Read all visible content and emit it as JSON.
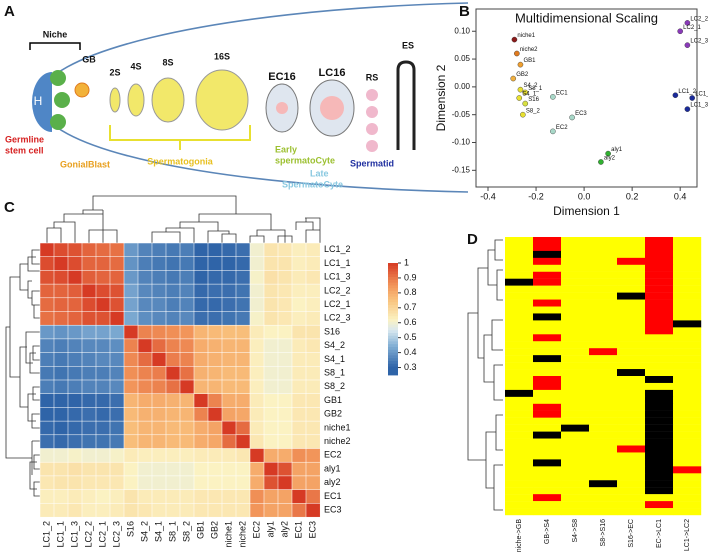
{
  "panel_labels": [
    "A",
    "B",
    "C",
    "D"
  ],
  "diagram": {
    "niche": "Niche",
    "hub": "H",
    "gb": "GB",
    "s2": "2S",
    "s4": "4S",
    "s8": "8S",
    "s16": "16S",
    "ec16": "EC16",
    "lc16": "LC16",
    "rs": "RS",
    "es": "ES",
    "germline_1": "Germline",
    "germline_2": "stem cell",
    "gonialblast": "GonialBlast",
    "spermatogonia": "Spermatogonia",
    "early_1": "Early",
    "early_2": "spermatoCyte",
    "late_1": "Late",
    "late_2": "SpermatoCyte",
    "spermatid": "Spermatid"
  },
  "chart_data": [
    {
      "type": "scatter",
      "title": "Multidimensional Scaling",
      "xlabel": "Dimension 1",
      "ylabel": "Dimension 2",
      "x": [
        -0.29,
        -0.28,
        -0.265,
        -0.295,
        -0.265,
        -0.245,
        -0.27,
        -0.245,
        -0.255,
        -0.13,
        -0.05,
        -0.13,
        0.1,
        0.07,
        0.43,
        0.4,
        0.43,
        0.38,
        0.45,
        0.43
      ],
      "y": [
        0.085,
        0.06,
        0.04,
        0.015,
        -0.005,
        -0.01,
        -0.02,
        -0.03,
        -0.05,
        -0.018,
        -0.055,
        -0.08,
        -0.12,
        -0.135,
        0.115,
        0.1,
        0.075,
        -0.015,
        -0.02,
        -0.04
      ],
      "point_labels": [
        "niche1",
        "niche2",
        "GB1",
        "GB2",
        "S4_2",
        "S8_1",
        "S4_1",
        "S16",
        "S8_2",
        "EC1",
        "EC3",
        "EC2",
        "aly1",
        "aly2",
        "LC2_2",
        "LC2_1",
        "LC2_3",
        "LC1_2",
        "LC1_1",
        "LC1_3"
      ],
      "colors": [
        "#8b1a1a",
        "#e07b1f",
        "#f0a030",
        "#f0b040",
        "#e8e030",
        "#e8e030",
        "#e8e030",
        "#d8e040",
        "#e8e030",
        "#a8d8c8",
        "#a8d8c8",
        "#a8d8c8",
        "#30b030",
        "#30b030",
        "#8a3ab9",
        "#8a3ab9",
        "#8a3ab9",
        "#1a2a9a",
        "#1a2a9a",
        "#1a2a9a"
      ],
      "xlim": [
        -0.45,
        0.47
      ],
      "ylim": [
        -0.18,
        0.14
      ],
      "xticks": [
        -0.4,
        -0.2,
        {
          "value": 0,
          "label": "0.0"
        },
        0.2,
        0.4
      ],
      "yticks": [
        -0.15,
        {
          "value": -0.1,
          "label": "-0.10"
        },
        -0.05,
        {
          "value": 0,
          "label": "0.00"
        },
        0.05,
        {
          "value": 0.1,
          "label": "0.10"
        }
      ]
    },
    {
      "type": "heatmap",
      "rows": [
        "LC1_2",
        "LC1_1",
        "LC1_3",
        "LC2_2",
        "LC2_1",
        "LC2_3",
        "S16",
        "S4_2",
        "S4_1",
        "S8_1",
        "S8_2",
        "GB1",
        "GB2",
        "niche1",
        "niche2",
        "EC2",
        "aly1",
        "aly2",
        "EC1",
        "EC3"
      ],
      "columns": [
        "LC1_2",
        "LC1_1",
        "LC1_3",
        "LC2_2",
        "LC2_1",
        "LC2_3",
        "S16",
        "S4_2",
        "S4_1",
        "S8_1",
        "S8_2",
        "GB1",
        "GB2",
        "niche1",
        "niche2",
        "EC2",
        "aly1",
        "aly2",
        "EC1",
        "EC3"
      ],
      "values": [
        [
          1,
          0.97,
          0.96,
          0.93,
          0.92,
          0.91,
          0.4,
          0.36,
          0.35,
          0.34,
          0.35,
          0.3,
          0.3,
          0.31,
          0.32,
          0.6,
          0.66,
          0.65,
          0.63,
          0.64
        ],
        [
          0.97,
          1,
          0.97,
          0.93,
          0.93,
          0.92,
          0.39,
          0.35,
          0.34,
          0.33,
          0.34,
          0.29,
          0.3,
          0.3,
          0.31,
          0.6,
          0.66,
          0.66,
          0.63,
          0.64
        ],
        [
          0.96,
          0.97,
          1,
          0.94,
          0.93,
          0.93,
          0.4,
          0.36,
          0.35,
          0.34,
          0.35,
          0.3,
          0.31,
          0.31,
          0.32,
          0.61,
          0.67,
          0.66,
          0.64,
          0.65
        ],
        [
          0.93,
          0.93,
          0.94,
          1,
          0.97,
          0.96,
          0.42,
          0.37,
          0.36,
          0.35,
          0.36,
          0.31,
          0.32,
          0.32,
          0.33,
          0.6,
          0.66,
          0.65,
          0.63,
          0.63
        ],
        [
          0.92,
          0.93,
          0.93,
          0.97,
          1,
          0.96,
          0.42,
          0.37,
          0.37,
          0.35,
          0.36,
          0.31,
          0.31,
          0.32,
          0.33,
          0.6,
          0.66,
          0.65,
          0.62,
          0.63
        ],
        [
          0.91,
          0.92,
          0.93,
          0.96,
          0.96,
          1,
          0.43,
          0.38,
          0.37,
          0.36,
          0.37,
          0.32,
          0.32,
          0.33,
          0.34,
          0.61,
          0.66,
          0.65,
          0.63,
          0.64
        ],
        [
          0.4,
          0.39,
          0.4,
          0.42,
          0.42,
          0.43,
          1,
          0.88,
          0.87,
          0.86,
          0.85,
          0.78,
          0.77,
          0.76,
          0.76,
          0.64,
          0.62,
          0.62,
          0.66,
          0.66
        ],
        [
          0.36,
          0.35,
          0.36,
          0.37,
          0.37,
          0.38,
          0.88,
          1,
          0.92,
          0.88,
          0.87,
          0.8,
          0.79,
          0.78,
          0.78,
          0.63,
          0.6,
          0.6,
          0.64,
          0.65
        ],
        [
          0.35,
          0.34,
          0.35,
          0.36,
          0.37,
          0.37,
          0.87,
          0.92,
          1,
          0.89,
          0.88,
          0.8,
          0.79,
          0.78,
          0.78,
          0.63,
          0.6,
          0.6,
          0.64,
          0.64
        ],
        [
          0.34,
          0.33,
          0.34,
          0.35,
          0.35,
          0.36,
          0.86,
          0.88,
          0.89,
          1,
          0.91,
          0.79,
          0.78,
          0.77,
          0.77,
          0.63,
          0.6,
          0.6,
          0.64,
          0.64
        ],
        [
          0.35,
          0.34,
          0.35,
          0.36,
          0.36,
          0.37,
          0.85,
          0.87,
          0.88,
          0.91,
          1,
          0.78,
          0.78,
          0.77,
          0.77,
          0.63,
          0.6,
          0.6,
          0.64,
          0.64
        ],
        [
          0.3,
          0.29,
          0.3,
          0.31,
          0.31,
          0.32,
          0.78,
          0.8,
          0.8,
          0.79,
          0.78,
          1,
          0.88,
          0.8,
          0.8,
          0.64,
          0.62,
          0.62,
          0.65,
          0.65
        ],
        [
          0.3,
          0.3,
          0.31,
          0.32,
          0.31,
          0.32,
          0.77,
          0.79,
          0.79,
          0.78,
          0.78,
          0.88,
          1,
          0.82,
          0.81,
          0.64,
          0.62,
          0.62,
          0.65,
          0.65
        ],
        [
          0.31,
          0.3,
          0.31,
          0.32,
          0.32,
          0.33,
          0.76,
          0.78,
          0.78,
          0.77,
          0.77,
          0.8,
          0.82,
          1,
          0.92,
          0.64,
          0.62,
          0.62,
          0.65,
          0.65
        ],
        [
          0.32,
          0.31,
          0.32,
          0.33,
          0.33,
          0.34,
          0.76,
          0.78,
          0.78,
          0.77,
          0.77,
          0.8,
          0.81,
          0.92,
          1,
          0.65,
          0.62,
          0.62,
          0.65,
          0.65
        ],
        [
          0.6,
          0.6,
          0.61,
          0.6,
          0.6,
          0.61,
          0.64,
          0.63,
          0.63,
          0.63,
          0.63,
          0.64,
          0.64,
          0.64,
          0.65,
          1,
          0.8,
          0.8,
          0.86,
          0.85
        ],
        [
          0.66,
          0.66,
          0.67,
          0.66,
          0.66,
          0.66,
          0.62,
          0.6,
          0.6,
          0.6,
          0.6,
          0.62,
          0.62,
          0.62,
          0.62,
          0.8,
          1,
          0.96,
          0.82,
          0.82
        ],
        [
          0.65,
          0.66,
          0.66,
          0.65,
          0.65,
          0.65,
          0.62,
          0.6,
          0.6,
          0.6,
          0.6,
          0.62,
          0.62,
          0.62,
          0.62,
          0.8,
          0.96,
          1,
          0.82,
          0.82
        ],
        [
          0.63,
          0.63,
          0.64,
          0.63,
          0.62,
          0.63,
          0.66,
          0.64,
          0.64,
          0.64,
          0.64,
          0.65,
          0.65,
          0.65,
          0.65,
          0.86,
          0.82,
          0.82,
          1,
          0.9
        ],
        [
          0.64,
          0.64,
          0.65,
          0.63,
          0.63,
          0.64,
          0.66,
          0.65,
          0.64,
          0.64,
          0.64,
          0.65,
          0.65,
          0.65,
          0.65,
          0.85,
          0.82,
          0.82,
          0.9,
          1
        ]
      ],
      "color_stops": [
        [
          0.3,
          "#2f64a8"
        ],
        [
          0.45,
          "#86b2d6"
        ],
        [
          0.55,
          "#d9e8ef"
        ],
        [
          0.62,
          "#fbf2c2"
        ],
        [
          0.75,
          "#f9c37e"
        ],
        [
          0.85,
          "#f2955a"
        ],
        [
          1,
          "#d63a24"
        ]
      ],
      "colorbar_lim": [
        0.25,
        1
      ],
      "colorbar_ticks": [
        1,
        0.9,
        0.8,
        0.7,
        0.6,
        0.5,
        0.4,
        0.3
      ]
    },
    {
      "type": "heatmap",
      "columns": [
        "niche->GB",
        "GB->S4",
        "S4->S8",
        "S8->S16",
        "S16->EC",
        "EC->LC1",
        "LC1->LC2"
      ],
      "values": [
        [
          0,
          1,
          0,
          0,
          0,
          1,
          0
        ],
        [
          0,
          1,
          0,
          0,
          0,
          1,
          0
        ],
        [
          0,
          -1,
          0,
          0,
          0,
          1,
          0
        ],
        [
          0,
          1,
          0,
          0,
          1,
          1,
          0
        ],
        [
          0,
          0,
          0,
          0,
          0,
          1,
          0
        ],
        [
          0,
          1,
          0,
          0,
          0,
          1,
          0
        ],
        [
          -1,
          1,
          0,
          0,
          0,
          1,
          0
        ],
        [
          0,
          0,
          0,
          0,
          0,
          1,
          0
        ],
        [
          0,
          0,
          0,
          0,
          -1,
          1,
          0
        ],
        [
          0,
          1,
          0,
          0,
          0,
          1,
          0
        ],
        [
          0,
          0,
          0,
          0,
          0,
          1,
          0
        ],
        [
          0,
          -1,
          0,
          0,
          0,
          1,
          0
        ],
        [
          0,
          0,
          0,
          0,
          0,
          1,
          -1
        ],
        [
          0,
          0,
          0,
          0,
          0,
          1,
          0
        ],
        [
          0,
          1,
          0,
          0,
          0,
          0,
          0
        ],
        [
          0,
          0,
          0,
          0,
          0,
          0,
          0
        ],
        [
          0,
          0,
          0,
          1,
          0,
          0,
          0
        ],
        [
          0,
          -1,
          0,
          0,
          0,
          0,
          0
        ],
        [
          0,
          0,
          0,
          0,
          0,
          0,
          0
        ],
        [
          0,
          0,
          0,
          0,
          -1,
          0,
          0
        ],
        [
          0,
          1,
          0,
          0,
          0,
          -1,
          0
        ],
        [
          0,
          1,
          0,
          0,
          0,
          0,
          0
        ],
        [
          -1,
          0,
          0,
          0,
          0,
          -1,
          0
        ],
        [
          0,
          0,
          0,
          0,
          0,
          -1,
          0
        ],
        [
          0,
          1,
          0,
          0,
          0,
          -1,
          0
        ],
        [
          0,
          1,
          0,
          0,
          0,
          -1,
          0
        ],
        [
          0,
          0,
          0,
          0,
          0,
          -1,
          0
        ],
        [
          0,
          0,
          -1,
          0,
          0,
          -1,
          0
        ],
        [
          0,
          -1,
          0,
          0,
          0,
          -1,
          0
        ],
        [
          0,
          0,
          0,
          0,
          0,
          -1,
          0
        ],
        [
          0,
          0,
          0,
          0,
          1,
          -1,
          0
        ],
        [
          0,
          0,
          0,
          0,
          0,
          -1,
          0
        ],
        [
          0,
          -1,
          0,
          0,
          0,
          -1,
          0
        ],
        [
          0,
          0,
          0,
          0,
          0,
          -1,
          1
        ],
        [
          0,
          0,
          0,
          0,
          0,
          -1,
          0
        ],
        [
          0,
          0,
          0,
          -1,
          0,
          -1,
          0
        ],
        [
          0,
          0,
          0,
          0,
          0,
          -1,
          0
        ],
        [
          0,
          1,
          0,
          0,
          0,
          0,
          0
        ],
        [
          0,
          0,
          0,
          0,
          0,
          1,
          0
        ],
        [
          0,
          0,
          0,
          0,
          0,
          0,
          0
        ]
      ],
      "color_stops": [
        [
          -1,
          "#000000"
        ],
        [
          0,
          "#ffff00"
        ],
        [
          1,
          "#ff0000"
        ]
      ]
    }
  ]
}
